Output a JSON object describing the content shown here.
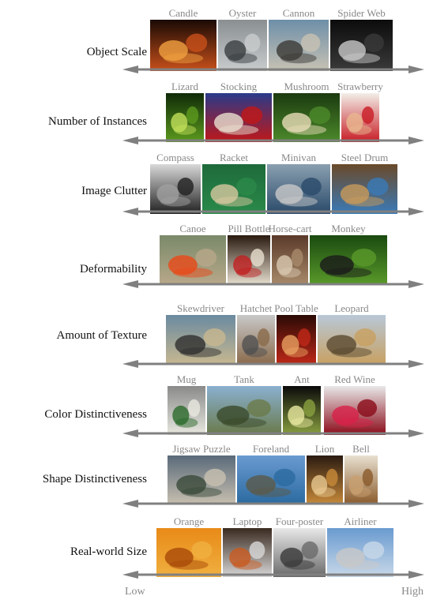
{
  "axis": {
    "low_label": "Low",
    "high_label": "High"
  },
  "rows": [
    {
      "label": "Object Scale",
      "items": [
        {
          "caption": "Candle",
          "palette": [
            "#1a0a05",
            "#c8501a",
            "#f0a040"
          ]
        },
        {
          "caption": "Oyster",
          "palette": [
            "#8a8f92",
            "#c9cccd",
            "#3a3e40"
          ]
        },
        {
          "caption": "Cannon",
          "palette": [
            "#6d8fa8",
            "#c8c2b4",
            "#3b3a36"
          ]
        },
        {
          "caption": "Spider Web",
          "palette": [
            "#0c0c0c",
            "#3a3a3a",
            "#c8c8c8"
          ]
        }
      ]
    },
    {
      "label": "Number of Instances",
      "items": [
        {
          "caption": "Lizard",
          "palette": [
            "#0f2a08",
            "#5c9a1e",
            "#c2e05a"
          ]
        },
        {
          "caption": "Stocking",
          "palette": [
            "#2a3a8a",
            "#c01818",
            "#e8e0d0"
          ]
        },
        {
          "caption": "Mushroom",
          "palette": [
            "#1c3a10",
            "#4c8a2a",
            "#e8dcb8"
          ]
        },
        {
          "caption": "Strawberry",
          "palette": [
            "#f2eee8",
            "#c81c24",
            "#e8b890"
          ]
        }
      ]
    },
    {
      "label": "Image Clutter",
      "items": [
        {
          "caption": "Compass",
          "palette": [
            "#d8d8d8",
            "#202020",
            "#a0a0a0"
          ]
        },
        {
          "caption": "Racket",
          "palette": [
            "#1e6a3a",
            "#2a8a4a",
            "#d8c8a0"
          ]
        },
        {
          "caption": "Minivan",
          "palette": [
            "#8aa0b0",
            "#2a4a6a",
            "#c8c8c8"
          ]
        },
        {
          "caption": "Steel Drum",
          "palette": [
            "#6a4a2a",
            "#3a7ab8",
            "#c89a5a"
          ]
        }
      ]
    },
    {
      "label": "Deformability",
      "items": [
        {
          "caption": "Canoe",
          "palette": [
            "#7a8a6a",
            "#b8a88a",
            "#e84818"
          ]
        },
        {
          "caption": "Pill Bottle",
          "palette": [
            "#2a1a10",
            "#e8e0d0",
            "#c02020"
          ]
        },
        {
          "caption": "Horse-cart",
          "palette": [
            "#5a3a2a",
            "#a88a6a",
            "#d8c8b0"
          ]
        },
        {
          "caption": "Monkey",
          "palette": [
            "#1a4a10",
            "#5a9a2a",
            "#1a1a1a"
          ]
        }
      ]
    },
    {
      "label": "Amount of Texture",
      "items": [
        {
          "caption": "Skewdriver",
          "palette": [
            "#6a8aa0",
            "#c8b890",
            "#303030"
          ]
        },
        {
          "caption": "Hatchet",
          "palette": [
            "#c8c8c8",
            "#8a6a4a",
            "#505050"
          ]
        },
        {
          "caption": "Pool Table",
          "palette": [
            "#2a0a05",
            "#c02818",
            "#e8a060"
          ]
        },
        {
          "caption": "Leopard",
          "palette": [
            "#b8c8d8",
            "#c8a060",
            "#5a4a30"
          ]
        }
      ]
    },
    {
      "label": "Color Distinctiveness",
      "items": [
        {
          "caption": "Mug",
          "palette": [
            "#8a8a8a",
            "#e8e8e0",
            "#2a6a2a"
          ]
        },
        {
          "caption": "Tank",
          "palette": [
            "#8ab0d0",
            "#6a7a4a",
            "#3a4a2a"
          ]
        },
        {
          "caption": "Ant",
          "palette": [
            "#0a0a0a",
            "#8aa040",
            "#e8e8a0"
          ]
        },
        {
          "caption": "Red Wine",
          "palette": [
            "#e8e8e8",
            "#8a0a18",
            "#d82048"
          ]
        }
      ]
    },
    {
      "label": "Shape Distinctiveness",
      "items": [
        {
          "caption": "Jigsaw Puzzle",
          "palette": [
            "#5a6a7a",
            "#c8c0b0",
            "#3a4a3a"
          ]
        },
        {
          "caption": "Foreland",
          "palette": [
            "#6a9ad0",
            "#2a6aa0",
            "#5a5a4a"
          ]
        },
        {
          "caption": "Lion",
          "palette": [
            "#2a1a10",
            "#c88a3a",
            "#e8c890"
          ]
        },
        {
          "caption": "Bell",
          "palette": [
            "#e8e0d0",
            "#8a5a2a",
            "#c8a070"
          ]
        }
      ]
    },
    {
      "label": "Real-world Size",
      "items": [
        {
          "caption": "Orange",
          "palette": [
            "#e88a18",
            "#f0b040",
            "#a84a08"
          ]
        },
        {
          "caption": "Laptop",
          "palette": [
            "#3a2a20",
            "#d8d8d8",
            "#c85a20"
          ]
        },
        {
          "caption": "Four-poster",
          "palette": [
            "#e8e8e8",
            "#6a6a6a",
            "#3a3a3a"
          ]
        },
        {
          "caption": "Airliner",
          "palette": [
            "#6a9ad0",
            "#c8d8e8",
            "#c8c8c8"
          ]
        }
      ]
    }
  ]
}
